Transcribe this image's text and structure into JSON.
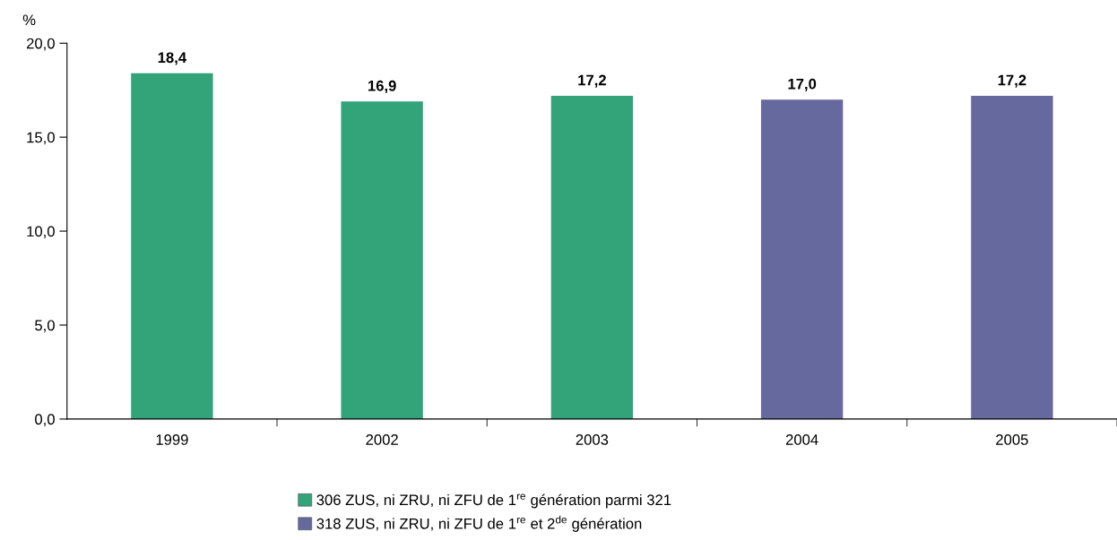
{
  "chart_data": {
    "type": "bar",
    "stacked": true,
    "ylabel": "%",
    "categories": [
      "1999",
      "2002",
      "2003",
      "2004",
      "2005"
    ],
    "series": [
      {
        "name": "306 ZUS, ni ZRU, ni ZFU de 1$^{re}$ génération parmi 321",
        "color": "#33a37a",
        "values": [
          18.4,
          16.9,
          17.2,
          null,
          null
        ],
        "value_labels": [
          "18,4",
          "16,9",
          "17,2",
          null,
          null
        ]
      },
      {
        "name": "318 ZUS, ni ZRU, ni ZFU de 1$^{re}$ et 2$^{de}$ génération",
        "color": "#66699e",
        "values": [
          null,
          null,
          null,
          17.0,
          17.2
        ],
        "value_labels": [
          null,
          null,
          null,
          "17,0",
          "17,2"
        ]
      }
    ],
    "ylim": [
      0,
      20
    ],
    "yticks": [
      {
        "value": 0,
        "label": "0,0"
      },
      {
        "value": 5,
        "label": "5,0"
      },
      {
        "value": 10,
        "label": "10,0"
      },
      {
        "value": 15,
        "label": "15,0"
      },
      {
        "value": 20,
        "label": "20,0"
      }
    ],
    "grid": false,
    "legend": "bottom"
  }
}
